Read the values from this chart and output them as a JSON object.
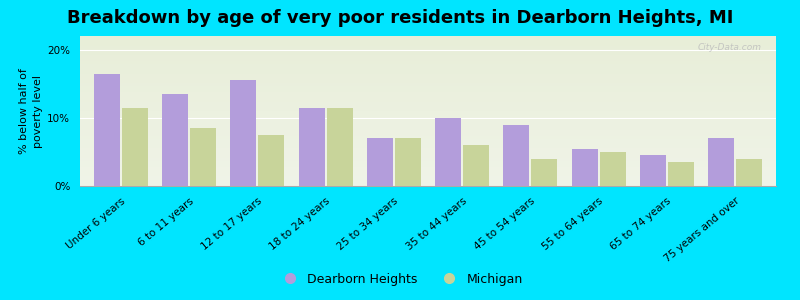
{
  "title": "Breakdown by age of very poor residents in Dearborn Heights, MI",
  "categories": [
    "Under 6 years",
    "6 to 11 years",
    "12 to 17 years",
    "18 to 24 years",
    "25 to 34 years",
    "35 to 44 years",
    "45 to 54 years",
    "55 to 64 years",
    "65 to 74 years",
    "75 years and over"
  ],
  "dearborn_heights": [
    16.5,
    13.5,
    15.5,
    11.5,
    7.0,
    10.0,
    9.0,
    5.5,
    4.5,
    7.0
  ],
  "michigan": [
    11.5,
    8.5,
    7.5,
    11.5,
    7.0,
    6.0,
    4.0,
    5.0,
    3.5,
    4.0
  ],
  "dearborn_color": "#b39ddb",
  "michigan_color": "#c8d49a",
  "background_outer": "#00e5ff",
  "background_inner_top": "#f0f4e8",
  "background_inner_bottom": "#e8eed8",
  "ylabel": "% below half of\npoverty level",
  "ylim": [
    0,
    22
  ],
  "yticks": [
    0,
    10,
    20
  ],
  "ytick_labels": [
    "0%",
    "10%",
    "20%"
  ],
  "title_fontsize": 13,
  "axis_label_fontsize": 8,
  "tick_fontsize": 7.5,
  "legend_label_dearborn": "Dearborn Heights",
  "legend_label_michigan": "Michigan",
  "watermark": "City-Data.com"
}
